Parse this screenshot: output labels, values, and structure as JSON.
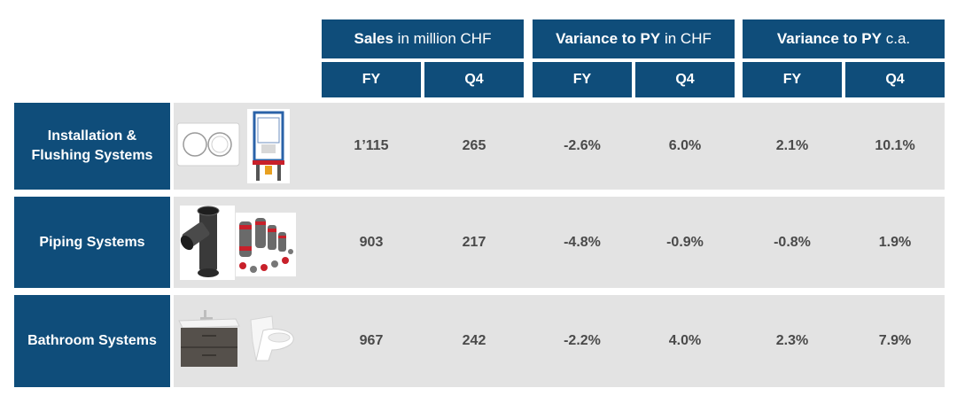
{
  "headers": {
    "sales": {
      "bold": "Sales",
      "rest": " in million CHF"
    },
    "variance_chf": {
      "bold": "Variance to PY",
      "rest": " in CHF"
    },
    "variance_ca": {
      "bold": "Variance to PY",
      "rest": " c.a."
    }
  },
  "sub_headers": [
    "FY",
    "Q4",
    "FY",
    "Q4",
    "FY",
    "Q4"
  ],
  "rows": [
    {
      "label": "Installation & Flushing Systems",
      "values": [
        "1’115",
        "265",
        "-2.6%",
        "6.0%",
        "2.1%",
        "10.1%"
      ]
    },
    {
      "label": "Piping Systems",
      "values": [
        "903",
        "217",
        "-4.8%",
        "-0.9%",
        "-0.8%",
        "1.9%"
      ]
    },
    {
      "label": "Bathroom Systems",
      "values": [
        "967",
        "242",
        "-2.2%",
        "4.0%",
        "2.3%",
        "7.9%"
      ]
    }
  ],
  "colors": {
    "header_blue": "#0f4d7a",
    "row_band": "#e3e3e3",
    "value_text": "#4a4a4a"
  },
  "icons": [
    "flush-plate-icon",
    "installation-frame-icon",
    "pipe-fitting-icon",
    "press-fittings-icon",
    "vanity-unit-icon",
    "shower-toilet-icon"
  ]
}
